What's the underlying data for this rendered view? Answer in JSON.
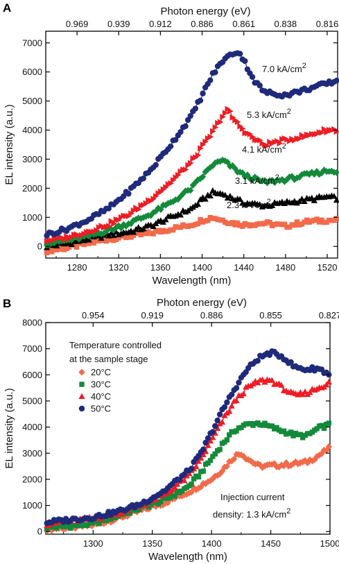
{
  "chart_data": [
    {
      "panel": "A",
      "type": "scatter",
      "xlabel": "Wavelength (nm)",
      "ylabel": "EL intensity (a.u.)",
      "top_axis_label": "Photon energy (eV)",
      "top_ticks": [
        {
          "label": "0.969",
          "wavelength": 1280
        },
        {
          "label": "0.939",
          "wavelength": 1320
        },
        {
          "label": "0.912",
          "wavelength": 1360
        },
        {
          "label": "0.886",
          "wavelength": 1400
        },
        {
          "label": "0.861",
          "wavelength": 1440
        },
        {
          "label": "0.838",
          "wavelength": 1480
        },
        {
          "label": "0.816",
          "wavelength": 1520
        }
      ],
      "xlim": [
        1250,
        1530
      ],
      "ylim": [
        -400,
        7400
      ],
      "xticks": [
        1280,
        1320,
        1360,
        1400,
        1440,
        1480,
        1520
      ],
      "yticks": [
        0,
        1000,
        2000,
        3000,
        4000,
        5000,
        6000,
        7000
      ],
      "series": [
        {
          "name": "2.3 kA/cm2",
          "marker": "square",
          "color": "#f26a4a",
          "x": [
            1250,
            1270,
            1290,
            1310,
            1330,
            1350,
            1370,
            1390,
            1400,
            1410,
            1420,
            1430,
            1440,
            1460,
            1480,
            1500,
            1520,
            1530
          ],
          "y": [
            -150,
            -50,
            100,
            250,
            350,
            450,
            600,
            750,
            900,
            1000,
            900,
            800,
            750,
            800,
            700,
            850,
            900,
            900
          ]
        },
        {
          "name": "3.1 kA/cm2",
          "marker": "triangle",
          "color": "#000000",
          "x": [
            1250,
            1270,
            1290,
            1310,
            1330,
            1350,
            1370,
            1390,
            1400,
            1410,
            1420,
            1430,
            1440,
            1460,
            1480,
            1500,
            1520,
            1530
          ],
          "y": [
            0,
            100,
            250,
            400,
            500,
            700,
            1000,
            1300,
            1600,
            1850,
            1800,
            1650,
            1500,
            1400,
            1500,
            1600,
            1700,
            1650
          ]
        },
        {
          "name": "4.1 kA/cm2",
          "marker": "diamond",
          "color": "#138a3a",
          "x": [
            1250,
            1270,
            1290,
            1310,
            1330,
            1350,
            1370,
            1390,
            1400,
            1410,
            1420,
            1430,
            1440,
            1460,
            1480,
            1500,
            1520,
            1530
          ],
          "y": [
            100,
            200,
            350,
            550,
            800,
            1100,
            1500,
            2000,
            2400,
            2800,
            2950,
            2700,
            2450,
            2200,
            2300,
            2450,
            2600,
            2600
          ]
        },
        {
          "name": "5.3 kA/cm2",
          "marker": "triangle-right",
          "color": "#ee1c24",
          "x": [
            1250,
            1270,
            1290,
            1310,
            1330,
            1350,
            1370,
            1390,
            1400,
            1410,
            1420,
            1425,
            1430,
            1440,
            1450,
            1460,
            1480,
            1500,
            1520,
            1530
          ],
          "y": [
            200,
            300,
            500,
            750,
            1100,
            1600,
            2200,
            2900,
            3400,
            3900,
            4500,
            4700,
            4400,
            4000,
            3700,
            3500,
            3650,
            3800,
            4000,
            4000
          ]
        },
        {
          "name": "7.0 kA/cm2",
          "marker": "circle",
          "color": "#1f2a7a",
          "x": [
            1250,
            1270,
            1290,
            1310,
            1330,
            1350,
            1370,
            1390,
            1400,
            1410,
            1420,
            1430,
            1435,
            1440,
            1450,
            1460,
            1480,
            1500,
            1520,
            1530
          ],
          "y": [
            400,
            600,
            900,
            1300,
            1900,
            2600,
            3500,
            4500,
            5200,
            5900,
            6400,
            6650,
            6700,
            6400,
            5700,
            5300,
            5200,
            5400,
            5600,
            5700
          ]
        }
      ],
      "annotations": [
        {
          "label": "7.0 kA/cm",
          "sup": "2"
        },
        {
          "label": "5.3 kA/cm",
          "sup": "2"
        },
        {
          "label": "4.1 kA/cm",
          "sup": "2"
        },
        {
          "label": "3.1 kA/cm",
          "sup": "2"
        },
        {
          "label": "2.3 kA/cm",
          "sup": "2"
        }
      ]
    },
    {
      "panel": "B",
      "type": "scatter",
      "xlabel": "Wavelength (nm)",
      "ylabel": "EL intensity (a.u.)",
      "top_axis_label": "Photon energy (eV)",
      "top_ticks": [
        {
          "label": "0.954",
          "wavelength": 1300
        },
        {
          "label": "0.919",
          "wavelength": 1350
        },
        {
          "label": "0.886",
          "wavelength": 1400
        },
        {
          "label": "0.855",
          "wavelength": 1450
        },
        {
          "label": "0.827",
          "wavelength": 1500
        }
      ],
      "xlim": [
        1260,
        1500
      ],
      "ylim": [
        -100,
        8000
      ],
      "xticks": [
        1300,
        1350,
        1400,
        1450,
        1500
      ],
      "yticks": [
        0,
        1000,
        2000,
        3000,
        4000,
        5000,
        6000,
        7000,
        8000
      ],
      "legend_title": [
        "Temperature controlled",
        "at the sample stage"
      ],
      "legend_placement": "top-left",
      "note": [
        "Injection current",
        "density: 1.3 kA/cm",
        "2"
      ],
      "series": [
        {
          "name": "20°C",
          "marker": "diamond",
          "color": "#f26a4a",
          "x": [
            1260,
            1280,
            1300,
            1320,
            1340,
            1360,
            1380,
            1400,
            1410,
            1420,
            1425,
            1430,
            1440,
            1460,
            1480,
            1490,
            1500
          ],
          "y": [
            100,
            150,
            250,
            500,
            800,
            1100,
            1500,
            2000,
            2400,
            2900,
            3000,
            2800,
            2500,
            2550,
            2650,
            2900,
            3200
          ]
        },
        {
          "name": "30°C",
          "marker": "square",
          "color": "#138a3a",
          "x": [
            1260,
            1280,
            1300,
            1320,
            1340,
            1360,
            1380,
            1390,
            1400,
            1410,
            1420,
            1430,
            1440,
            1450,
            1460,
            1470,
            1480,
            1490,
            1500
          ],
          "y": [
            150,
            200,
            300,
            600,
            900,
            1200,
            1700,
            2200,
            2800,
            3400,
            3900,
            4100,
            4150,
            4000,
            3850,
            3700,
            3650,
            3950,
            4100
          ]
        },
        {
          "name": "40°C",
          "marker": "triangle",
          "color": "#ee1c24",
          "x": [
            1260,
            1280,
            1300,
            1320,
            1340,
            1360,
            1380,
            1390,
            1400,
            1410,
            1420,
            1430,
            1440,
            1450,
            1460,
            1470,
            1480,
            1490,
            1500
          ],
          "y": [
            300,
            400,
            500,
            700,
            1000,
            1400,
            2100,
            2700,
            3500,
            4300,
            5000,
            5500,
            5750,
            5800,
            5500,
            5200,
            5300,
            5500,
            5700
          ]
        },
        {
          "name": "50°C",
          "marker": "circle",
          "color": "#1f2a7a",
          "x": [
            1260,
            1280,
            1300,
            1320,
            1340,
            1360,
            1380,
            1390,
            1400,
            1410,
            1420,
            1430,
            1440,
            1450,
            1460,
            1470,
            1480,
            1490,
            1500
          ],
          "y": [
            350,
            450,
            550,
            750,
            1050,
            1550,
            2300,
            2900,
            3800,
            4700,
            5500,
            6200,
            6650,
            6850,
            6700,
            6300,
            6200,
            6250,
            6000
          ]
        }
      ]
    }
  ]
}
